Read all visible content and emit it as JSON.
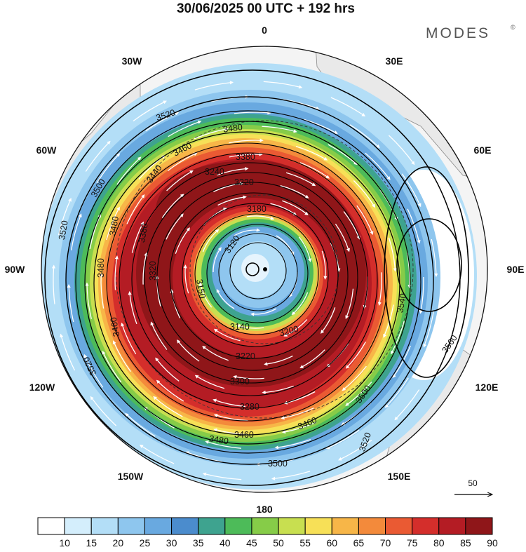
{
  "title": "30/06/2025  00 UTC  + 192 hrs",
  "brand": {
    "name": "MODES",
    "mark": "©"
  },
  "longitude_labels": {
    "lon_0": "0",
    "lon_30e": "30E",
    "lon_60e": "60E",
    "lon_90e": "90E",
    "lon_120e": "120E",
    "lon_150e": "150E",
    "lon_180": "180",
    "lon_150w": "150W",
    "lon_120w": "120W",
    "lon_90w": "90W",
    "lon_60w": "60W",
    "lon_30w": "30W"
  },
  "contour_labels": [
    "3520",
    "3480",
    "3460",
    "3380",
    "3240",
    "3220",
    "3180",
    "3500",
    "3480",
    "3440",
    "3520",
    "3480",
    "3380",
    "3320",
    "3460",
    "3520",
    "3140",
    "3200",
    "3220",
    "3300",
    "3280",
    "3460",
    "3460",
    "3480",
    "3500",
    "3520",
    "3540",
    "3560",
    "3500",
    "3150",
    "3120"
  ],
  "wind_reference": {
    "label": "50"
  },
  "colorbar": {
    "ticks": [
      "10",
      "15",
      "20",
      "25",
      "30",
      "35",
      "40",
      "45",
      "50",
      "55",
      "60",
      "65",
      "70",
      "75",
      "80",
      "85",
      "90"
    ],
    "colors": [
      "#ffffff",
      "#d4eefc",
      "#b3def7",
      "#8ec6ee",
      "#69a9e0",
      "#4b8ccd",
      "#3ea38f",
      "#4dbb59",
      "#86cc48",
      "#c8df50",
      "#f7e057",
      "#f7b648",
      "#f38a3b",
      "#ea5a33",
      "#d42e2b",
      "#b41c24",
      "#8f1619"
    ]
  },
  "colors": {
    "land": "#e8e8e8",
    "contour": "#000000",
    "streamline": "#ffffff"
  },
  "icons": {
    "north_pole": "pole-marker-icon",
    "reference_arrow": "arrow-right-icon"
  }
}
